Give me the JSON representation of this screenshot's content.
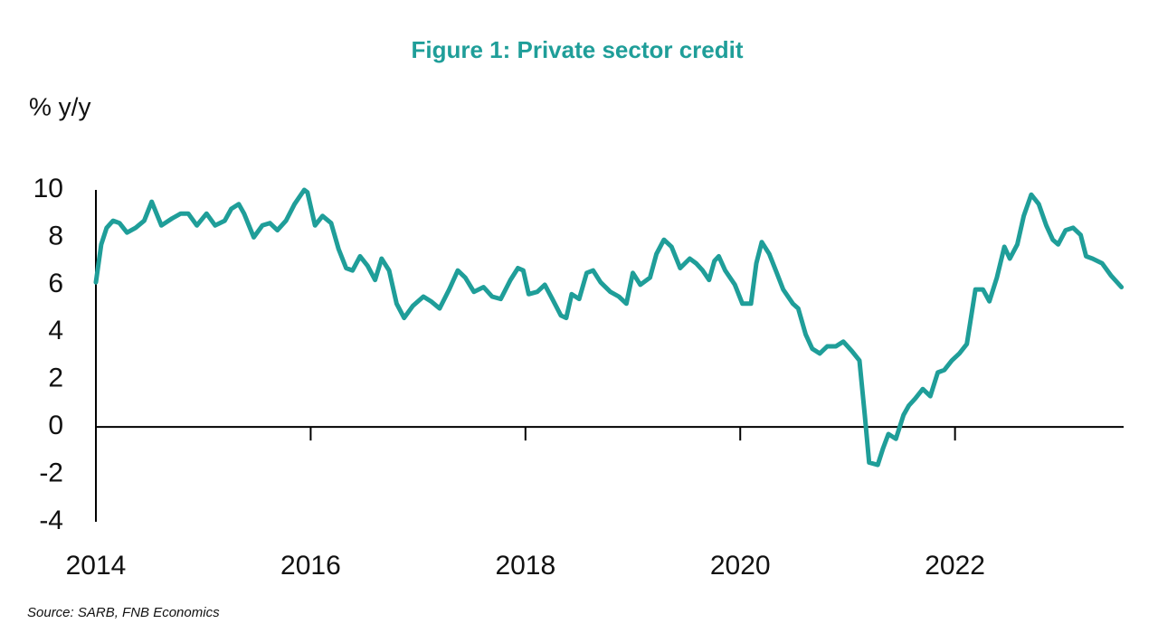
{
  "chart_data": {
    "type": "line",
    "title": "Figure 1: Private sector credit",
    "y_axis_label": "% y/y",
    "source": "Source: SARB, FNB Economics",
    "xlim": [
      2014,
      2023.57
    ],
    "xticks": [
      2014,
      2016,
      2018,
      2020,
      2022
    ],
    "ylim": [
      -4,
      10
    ],
    "yticks": [
      -4,
      -2,
      0,
      2,
      4,
      6,
      8,
      10
    ],
    "grid": false,
    "series": [
      {
        "name": "Private sector credit",
        "color": "#1f9e99",
        "x": [
          2014.0,
          2014.05,
          2014.1,
          2014.16,
          2014.22,
          2014.29,
          2014.37,
          2014.45,
          2014.52,
          2014.61,
          2014.71,
          2014.79,
          2014.86,
          2014.94,
          2015.03,
          2015.11,
          2015.2,
          2015.26,
          2015.33,
          2015.38,
          2015.47,
          2015.55,
          2015.62,
          2015.69,
          2015.77,
          2015.85,
          2015.94,
          2015.97,
          2016.04,
          2016.11,
          2016.19,
          2016.26,
          2016.33,
          2016.39,
          2016.46,
          2016.53,
          2016.6,
          2016.66,
          2016.73,
          2016.8,
          2016.87,
          2016.95,
          2017.05,
          2017.12,
          2017.2,
          2017.29,
          2017.37,
          2017.44,
          2017.52,
          2017.61,
          2017.69,
          2017.77,
          2017.86,
          2017.93,
          2017.98,
          2018.03,
          2018.11,
          2018.18,
          2018.25,
          2018.33,
          2018.38,
          2018.43,
          2018.5,
          2018.57,
          2018.63,
          2018.7,
          2018.79,
          2018.87,
          2018.94,
          2019.0,
          2019.07,
          2019.16,
          2019.22,
          2019.29,
          2019.36,
          2019.44,
          2019.53,
          2019.59,
          2019.65,
          2019.71,
          2019.76,
          2019.8,
          2019.86,
          2019.95,
          2020.02,
          2020.1,
          2020.15,
          2020.2,
          2020.27,
          2020.34,
          2020.4,
          2020.49,
          2020.54,
          2020.61,
          2020.67,
          2020.74,
          2020.81,
          2020.89,
          2020.96,
          2021.04,
          2021.11,
          2021.16,
          2021.2,
          2021.28,
          2021.33,
          2021.38,
          2021.45,
          2021.52,
          2021.57,
          2021.63,
          2021.7,
          2021.77,
          2021.84,
          2021.9,
          2021.97,
          2022.04,
          2022.11,
          2022.19,
          2022.26,
          2022.32,
          2022.39,
          2022.46,
          2022.51,
          2022.58,
          2022.64,
          2022.71,
          2022.78,
          2022.85,
          2022.91,
          2022.96,
          2023.03,
          2023.1,
          2023.17,
          2023.22,
          2023.28,
          2023.37,
          2023.45,
          2023.55
        ],
        "values": [
          6.1,
          7.7,
          8.4,
          8.7,
          8.6,
          8.2,
          8.4,
          8.7,
          9.5,
          8.5,
          8.8,
          9.0,
          9.0,
          8.5,
          9.0,
          8.5,
          8.7,
          9.2,
          9.4,
          9.0,
          8.0,
          8.5,
          8.6,
          8.3,
          8.7,
          9.4,
          10.0,
          9.9,
          8.5,
          8.9,
          8.6,
          7.5,
          6.7,
          6.6,
          7.2,
          6.8,
          6.2,
          7.1,
          6.6,
          5.2,
          4.6,
          5.1,
          5.5,
          5.3,
          5.0,
          5.8,
          6.6,
          6.3,
          5.7,
          5.9,
          5.5,
          5.4,
          6.2,
          6.7,
          6.6,
          5.6,
          5.7,
          6.0,
          5.4,
          4.7,
          4.6,
          5.6,
          5.4,
          6.5,
          6.6,
          6.1,
          5.7,
          5.5,
          5.2,
          6.5,
          6.0,
          6.3,
          7.3,
          7.9,
          7.6,
          6.7,
          7.1,
          6.9,
          6.6,
          6.2,
          7.0,
          7.2,
          6.6,
          6.0,
          5.2,
          5.2,
          6.9,
          7.8,
          7.3,
          6.5,
          5.8,
          5.2,
          5.0,
          3.9,
          3.3,
          3.1,
          3.4,
          3.4,
          3.6,
          3.2,
          2.8,
          0.5,
          -1.5,
          -1.6,
          -0.9,
          -0.3,
          -0.5,
          0.5,
          0.9,
          1.2,
          1.6,
          1.3,
          2.3,
          2.4,
          2.8,
          3.1,
          3.5,
          5.8,
          5.8,
          5.3,
          6.3,
          7.6,
          7.1,
          7.7,
          8.9,
          9.8,
          9.4,
          8.5,
          7.9,
          7.7,
          8.3,
          8.4,
          8.1,
          7.2,
          7.1,
          6.9,
          6.4,
          5.9
        ]
      }
    ]
  }
}
